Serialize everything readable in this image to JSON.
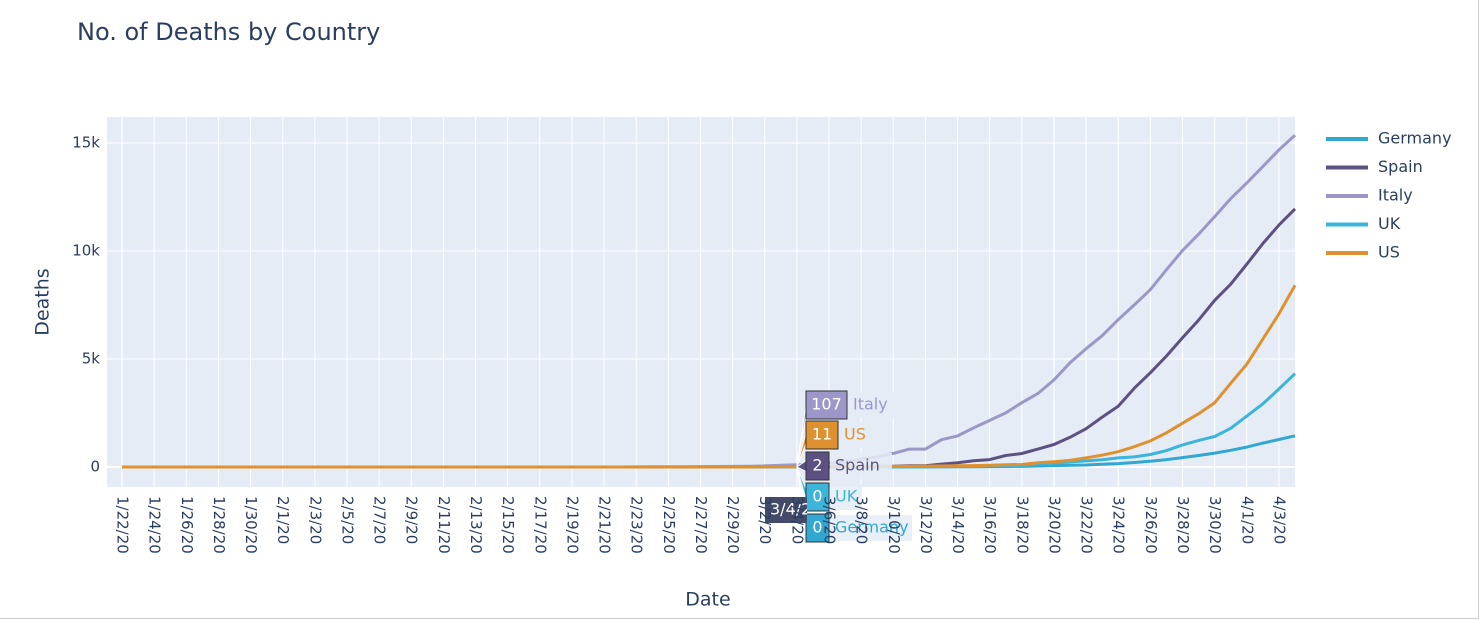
{
  "chart_data": {
    "type": "line",
    "title": "No. of Deaths by Country",
    "x_label": "Date",
    "y_label": "Deaths",
    "x": [
      "1/22/20",
      "1/23/20",
      "1/24/20",
      "1/25/20",
      "1/26/20",
      "1/27/20",
      "1/28/20",
      "1/29/20",
      "1/30/20",
      "1/31/20",
      "2/1/20",
      "2/2/20",
      "2/3/20",
      "2/4/20",
      "2/5/20",
      "2/6/20",
      "2/7/20",
      "2/8/20",
      "2/9/20",
      "2/10/20",
      "2/11/20",
      "2/12/20",
      "2/13/20",
      "2/14/20",
      "2/15/20",
      "2/16/20",
      "2/17/20",
      "2/18/20",
      "2/19/20",
      "2/20/20",
      "2/21/20",
      "2/22/20",
      "2/23/20",
      "2/24/20",
      "2/25/20",
      "2/26/20",
      "2/27/20",
      "2/28/20",
      "2/29/20",
      "3/1/20",
      "3/2/20",
      "3/3/20",
      "3/4/20",
      "3/5/20",
      "3/6/20",
      "3/7/20",
      "3/8/20",
      "3/9/20",
      "3/10/20",
      "3/11/20",
      "3/12/20",
      "3/13/20",
      "3/14/20",
      "3/15/20",
      "3/16/20",
      "3/17/20",
      "3/18/20",
      "3/19/20",
      "3/20/20",
      "3/21/20",
      "3/22/20",
      "3/23/20",
      "3/24/20",
      "3/25/20",
      "3/26/20",
      "3/27/20",
      "3/28/20",
      "3/29/20",
      "3/30/20",
      "3/31/20",
      "4/1/20",
      "4/2/20",
      "4/3/20",
      "4/4/20"
    ],
    "xticks": [
      "1/22/20",
      "1/24/20",
      "1/26/20",
      "1/28/20",
      "1/30/20",
      "2/1/20",
      "2/3/20",
      "2/5/20",
      "2/7/20",
      "2/9/20",
      "2/11/20",
      "2/13/20",
      "2/15/20",
      "2/17/20",
      "2/19/20",
      "2/21/20",
      "2/23/20",
      "2/25/20",
      "2/27/20",
      "2/29/20",
      "3/2/20",
      "3/4/20",
      "3/6/20",
      "3/8/20",
      "3/10/20",
      "3/12/20",
      "3/14/20",
      "3/16/20",
      "3/18/20",
      "3/20/20",
      "3/22/20",
      "3/24/20",
      "3/26/20",
      "3/28/20",
      "3/30/20",
      "4/1/20",
      "4/3/20"
    ],
    "ylim": [
      -926,
      16204
    ],
    "yticks": [
      0,
      {
        "value": 5000,
        "label": "5k"
      },
      {
        "value": 10000,
        "label": "10k"
      },
      {
        "value": 15000,
        "label": "15k"
      }
    ],
    "grid": true,
    "legend": "right",
    "series": [
      {
        "name": "Germany",
        "color": "#30a8d2",
        "values": [
          0,
          0,
          0,
          0,
          0,
          0,
          0,
          0,
          0,
          0,
          0,
          0,
          0,
          0,
          0,
          0,
          0,
          0,
          0,
          0,
          0,
          0,
          0,
          0,
          0,
          0,
          0,
          0,
          0,
          0,
          0,
          0,
          0,
          0,
          0,
          0,
          0,
          0,
          0,
          0,
          0,
          0,
          0,
          0,
          0,
          0,
          0,
          2,
          2,
          3,
          3,
          7,
          9,
          11,
          17,
          24,
          28,
          44,
          67,
          84,
          94,
          123,
          157,
          206,
          267,
          342,
          433,
          533,
          645,
          775,
          920,
          1107,
          1275,
          1444
        ]
      },
      {
        "name": "Spain",
        "color": "#5c5182",
        "values": [
          0,
          0,
          0,
          0,
          0,
          0,
          0,
          0,
          0,
          0,
          0,
          0,
          0,
          0,
          0,
          0,
          0,
          0,
          0,
          0,
          0,
          0,
          0,
          0,
          0,
          0,
          0,
          0,
          0,
          0,
          0,
          0,
          0,
          0,
          0,
          0,
          0,
          0,
          0,
          0,
          0,
          1,
          2,
          3,
          5,
          10,
          17,
          28,
          35,
          54,
          55,
          133,
          195,
          289,
          342,
          533,
          623,
          830,
          1043,
          1375,
          1772,
          2311,
          2808,
          3647,
          4365,
          5138,
          5982,
          6803,
          7716,
          8464,
          9387,
          10348,
          11198,
          11947
        ]
      },
      {
        "name": "Italy",
        "color": "#9b97c9",
        "values": [
          0,
          0,
          0,
          0,
          0,
          0,
          0,
          0,
          0,
          0,
          0,
          0,
          0,
          0,
          0,
          0,
          0,
          0,
          0,
          0,
          0,
          0,
          0,
          0,
          0,
          0,
          0,
          0,
          0,
          0,
          1,
          2,
          3,
          7,
          10,
          12,
          17,
          21,
          29,
          34,
          52,
          79,
          107,
          148,
          197,
          233,
          366,
          463,
          631,
          827,
          827,
          1266,
          1441,
          1809,
          2158,
          2503,
          2978,
          3405,
          4032,
          4825,
          5476,
          6077,
          6820,
          7503,
          8215,
          9134,
          10023,
          10779,
          11591,
          12428,
          13155,
          13915,
          14681,
          15362
        ]
      },
      {
        "name": "UK",
        "color": "#3bb5d9",
        "values": [
          0,
          0,
          0,
          0,
          0,
          0,
          0,
          0,
          0,
          0,
          0,
          0,
          0,
          0,
          0,
          0,
          0,
          0,
          0,
          0,
          0,
          0,
          0,
          0,
          0,
          0,
          0,
          0,
          0,
          0,
          0,
          0,
          0,
          0,
          0,
          0,
          0,
          0,
          0,
          0,
          0,
          0,
          0,
          1,
          2,
          2,
          3,
          4,
          6,
          8,
          8,
          8,
          21,
          21,
          56,
          56,
          72,
          138,
          178,
          234,
          282,
          336,
          423,
          466,
          580,
          761,
          1021,
          1231,
          1411,
          1793,
          2357,
          2926,
          3611,
          4320
        ]
      },
      {
        "name": "US",
        "color": "#e0912f",
        "values": [
          0,
          0,
          0,
          0,
          0,
          0,
          0,
          0,
          0,
          0,
          0,
          0,
          0,
          0,
          0,
          0,
          0,
          0,
          0,
          0,
          0,
          0,
          0,
          0,
          0,
          0,
          0,
          0,
          0,
          0,
          0,
          0,
          0,
          0,
          0,
          0,
          0,
          0,
          1,
          1,
          6,
          7,
          11,
          12,
          14,
          17,
          21,
          22,
          28,
          36,
          40,
          47,
          54,
          63,
          85,
          108,
          118,
          200,
          244,
          307,
          427,
          552,
          706,
          942,
          1209,
          1581,
          2026,
          2467,
          2978,
          3873,
          4757,
          5926,
          7087,
          8407
        ]
      }
    ],
    "hover": {
      "x": "3/4/20"
    }
  }
}
